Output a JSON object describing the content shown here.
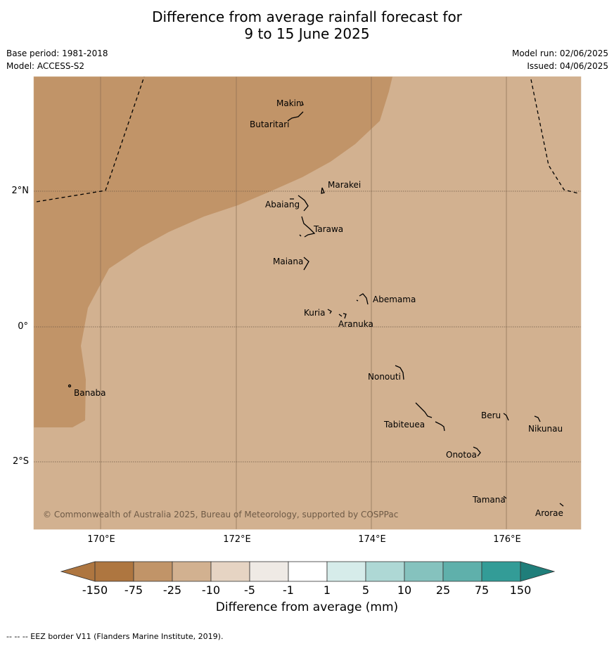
{
  "title_line1": "Difference from average rainfall forecast for",
  "title_line2": "9 to 15 June 2025",
  "base_period": "Base period: 1981-2018",
  "model": "Model: ACCESS-S2",
  "model_run": "Model run: 02/06/2025",
  "issued": "Issued: 04/06/2025",
  "copyright": "© Commonwealth of Australia 2025, Bureau of Meteorology, supported by COSPPac",
  "latitude_labels": [
    "2°N",
    "0°",
    "2°S"
  ],
  "longitude_labels": [
    "170°E",
    "172°E",
    "174°E",
    "176°E"
  ],
  "islands": [
    "Makin",
    "Butaritari",
    "Marakei",
    "Abaiang",
    "Tarawa",
    "Maiana",
    "Abemama",
    "Kuria",
    "Aranuka",
    "Banaba",
    "Nonouti",
    "Beru",
    "Nikunau",
    "Tabiteuea",
    "Onotoa",
    "Tamana",
    "Arorae"
  ],
  "colorbar": {
    "title": "Difference from average (mm)",
    "tick_labels": [
      "-150",
      "-75",
      "-25",
      "-10",
      "-5",
      "-1",
      "1",
      "5",
      "10",
      "25",
      "75",
      "150"
    ],
    "colors": [
      "#ae7640",
      "#c19468",
      "#d2b190",
      "#e6d4c3",
      "#efeae5",
      "#ffffff",
      "#d6ecea",
      "#aed8d5",
      "#85c2be",
      "#5fb0ab",
      "#339c97",
      "#1f7e7a"
    ]
  },
  "map_colors": {
    "dry_band": "#c19468",
    "mild_dry": "#d2b190"
  },
  "footnote": "--  --  -- EEZ border V11 (Flanders Marine Institute, 2019)."
}
